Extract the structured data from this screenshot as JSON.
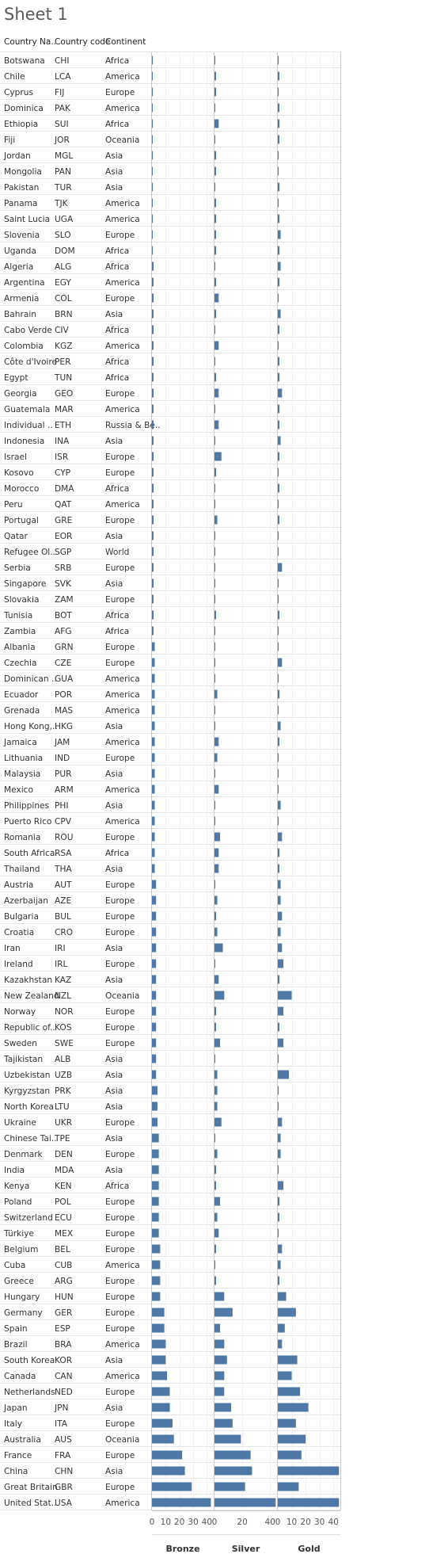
{
  "title": "Sheet 1",
  "columns": [
    "Country Na..",
    "Country code",
    "Continent"
  ],
  "colors": {
    "bar": "#4e79a7",
    "grid": "#e6e6e6",
    "axis": "#c8c8c8"
  },
  "chart_data": {
    "type": "bar",
    "orientation": "horizontal",
    "panels": [
      "Bronze",
      "Silver",
      "Gold"
    ],
    "xlim": [
      0,
      45
    ],
    "xticks": [
      0,
      10,
      20,
      30,
      40
    ],
    "silver_xticks": [
      0,
      20,
      40
    ],
    "rows": [
      {
        "country": "Botswana",
        "code": "CHI",
        "continent": "Africa",
        "bronze": 0,
        "silver": 0,
        "gold": 0
      },
      {
        "country": "Chile",
        "code": "LCA",
        "continent": "America",
        "bronze": 0,
        "silver": 1,
        "gold": 1
      },
      {
        "country": "Cyprus",
        "code": "FIJ",
        "continent": "Europe",
        "bronze": 0,
        "silver": 1,
        "gold": 0
      },
      {
        "country": "Dominica",
        "code": "PAK",
        "continent": "America",
        "bronze": 0,
        "silver": 0,
        "gold": 1
      },
      {
        "country": "Ethiopia",
        "code": "SUI",
        "continent": "Africa",
        "bronze": 0,
        "silver": 3,
        "gold": 1
      },
      {
        "country": "Fiji",
        "code": "JOR",
        "continent": "Oceania",
        "bronze": 0,
        "silver": 0,
        "gold": 1
      },
      {
        "country": "Jordan",
        "code": "MGL",
        "continent": "Asia",
        "bronze": 0,
        "silver": 1,
        "gold": 0
      },
      {
        "country": "Mongolia",
        "code": "PAN",
        "continent": "Asia",
        "bronze": 0,
        "silver": 1,
        "gold": 0
      },
      {
        "country": "Pakistan",
        "code": "TUR",
        "continent": "Asia",
        "bronze": 0,
        "silver": 0,
        "gold": 1
      },
      {
        "country": "Panama",
        "code": "TJK",
        "continent": "America",
        "bronze": 0,
        "silver": 1,
        "gold": 0
      },
      {
        "country": "Saint Lucia",
        "code": "UGA",
        "continent": "America",
        "bronze": 0,
        "silver": 1,
        "gold": 1
      },
      {
        "country": "Slovenia",
        "code": "SLO",
        "continent": "Europe",
        "bronze": 0,
        "silver": 1,
        "gold": 2
      },
      {
        "country": "Uganda",
        "code": "DOM",
        "continent": "Africa",
        "bronze": 0,
        "silver": 1,
        "gold": 1
      },
      {
        "country": "Algeria",
        "code": "ALG",
        "continent": "Africa",
        "bronze": 1,
        "silver": 0,
        "gold": 2
      },
      {
        "country": "Argentina",
        "code": "EGY",
        "continent": "America",
        "bronze": 1,
        "silver": 1,
        "gold": 1
      },
      {
        "country": "Armenia",
        "code": "COL",
        "continent": "Europe",
        "bronze": 1,
        "silver": 3,
        "gold": 0
      },
      {
        "country": "Bahrain",
        "code": "BRN",
        "continent": "Asia",
        "bronze": 1,
        "silver": 1,
        "gold": 2
      },
      {
        "country": "Cabo Verde",
        "code": "CIV",
        "continent": "Africa",
        "bronze": 1,
        "silver": 0,
        "gold": 1
      },
      {
        "country": "Colombia",
        "code": "KGZ",
        "continent": "America",
        "bronze": 1,
        "silver": 3,
        "gold": 0
      },
      {
        "country": "Côte d'Ivoire",
        "code": "PER",
        "continent": "Africa",
        "bronze": 1,
        "silver": 0,
        "gold": 1
      },
      {
        "country": "Egypt",
        "code": "TUN",
        "continent": "Africa",
        "bronze": 1,
        "silver": 1,
        "gold": 1
      },
      {
        "country": "Georgia",
        "code": "GEO",
        "continent": "Europe",
        "bronze": 1,
        "silver": 3,
        "gold": 3
      },
      {
        "country": "Guatemala",
        "code": "MAR",
        "continent": "America",
        "bronze": 1,
        "silver": 0,
        "gold": 1
      },
      {
        "country": "Individual ..",
        "code": "ETH",
        "continent": "Russia & Be..",
        "bronze": 1,
        "silver": 3,
        "gold": 1
      },
      {
        "country": "Indonesia",
        "code": "INA",
        "continent": "Asia",
        "bronze": 1,
        "silver": 0,
        "gold": 2
      },
      {
        "country": "Israel",
        "code": "ISR",
        "continent": "Europe",
        "bronze": 1,
        "silver": 5,
        "gold": 1
      },
      {
        "country": "Kosovo",
        "code": "CYP",
        "continent": "Europe",
        "bronze": 1,
        "silver": 1,
        "gold": 0
      },
      {
        "country": "Morocco",
        "code": "DMA",
        "continent": "Africa",
        "bronze": 1,
        "silver": 0,
        "gold": 1
      },
      {
        "country": "Peru",
        "code": "QAT",
        "continent": "America",
        "bronze": 1,
        "silver": 0,
        "gold": 0
      },
      {
        "country": "Portugal",
        "code": "GRE",
        "continent": "Europe",
        "bronze": 1,
        "silver": 2,
        "gold": 1
      },
      {
        "country": "Qatar",
        "code": "EOR",
        "continent": "Asia",
        "bronze": 1,
        "silver": 0,
        "gold": 0
      },
      {
        "country": "Refugee Ol..",
        "code": "SGP",
        "continent": "World",
        "bronze": 1,
        "silver": 0,
        "gold": 0
      },
      {
        "country": "Serbia",
        "code": "SRB",
        "continent": "Europe",
        "bronze": 1,
        "silver": 0,
        "gold": 3
      },
      {
        "country": "Singapore",
        "code": "SVK",
        "continent": "Asia",
        "bronze": 1,
        "silver": 0,
        "gold": 0
      },
      {
        "country": "Slovakia",
        "code": "ZAM",
        "continent": "Europe",
        "bronze": 1,
        "silver": 0,
        "gold": 0
      },
      {
        "country": "Tunisia",
        "code": "BOT",
        "continent": "Africa",
        "bronze": 1,
        "silver": 1,
        "gold": 1
      },
      {
        "country": "Zambia",
        "code": "AFG",
        "continent": "Africa",
        "bronze": 1,
        "silver": 0,
        "gold": 0
      },
      {
        "country": "Albania",
        "code": "GRN",
        "continent": "Europe",
        "bronze": 2,
        "silver": 0,
        "gold": 0
      },
      {
        "country": "Czechia",
        "code": "CZE",
        "continent": "Europe",
        "bronze": 2,
        "silver": 0,
        "gold": 3
      },
      {
        "country": "Dominican ..",
        "code": "GUA",
        "continent": "America",
        "bronze": 2,
        "silver": 0,
        "gold": 0
      },
      {
        "country": "Ecuador",
        "code": "POR",
        "continent": "America",
        "bronze": 2,
        "silver": 2,
        "gold": 1
      },
      {
        "country": "Grenada",
        "code": "MAS",
        "continent": "America",
        "bronze": 2,
        "silver": 0,
        "gold": 0
      },
      {
        "country": "Hong Kong,..",
        "code": "HKG",
        "continent": "Asia",
        "bronze": 2,
        "silver": 0,
        "gold": 2
      },
      {
        "country": "Jamaica",
        "code": "JAM",
        "continent": "America",
        "bronze": 2,
        "silver": 3,
        "gold": 1
      },
      {
        "country": "Lithuania",
        "code": "IND",
        "continent": "Europe",
        "bronze": 2,
        "silver": 2,
        "gold": 0
      },
      {
        "country": "Malaysia",
        "code": "PUR",
        "continent": "Asia",
        "bronze": 2,
        "silver": 0,
        "gold": 0
      },
      {
        "country": "Mexico",
        "code": "ARM",
        "continent": "America",
        "bronze": 2,
        "silver": 3,
        "gold": 0
      },
      {
        "country": "Philippines",
        "code": "PHI",
        "continent": "Asia",
        "bronze": 2,
        "silver": 0,
        "gold": 2
      },
      {
        "country": "Puerto Rico",
        "code": "CPV",
        "continent": "America",
        "bronze": 2,
        "silver": 0,
        "gold": 0
      },
      {
        "country": "Romania",
        "code": "ROU",
        "continent": "Europe",
        "bronze": 2,
        "silver": 4,
        "gold": 3
      },
      {
        "country": "South Africa",
        "code": "RSA",
        "continent": "Africa",
        "bronze": 2,
        "silver": 3,
        "gold": 1
      },
      {
        "country": "Thailand",
        "code": "THA",
        "continent": "Asia",
        "bronze": 2,
        "silver": 3,
        "gold": 1
      },
      {
        "country": "Austria",
        "code": "AUT",
        "continent": "Europe",
        "bronze": 3,
        "silver": 0,
        "gold": 2
      },
      {
        "country": "Azerbaijan",
        "code": "AZE",
        "continent": "Europe",
        "bronze": 3,
        "silver": 2,
        "gold": 2
      },
      {
        "country": "Bulgaria",
        "code": "BUL",
        "continent": "Europe",
        "bronze": 3,
        "silver": 1,
        "gold": 3
      },
      {
        "country": "Croatia",
        "code": "CRO",
        "continent": "Europe",
        "bronze": 3,
        "silver": 2,
        "gold": 2
      },
      {
        "country": "Iran",
        "code": "IRI",
        "continent": "Asia",
        "bronze": 3,
        "silver": 6,
        "gold": 3
      },
      {
        "country": "Ireland",
        "code": "IRL",
        "continent": "Europe",
        "bronze": 3,
        "silver": 0,
        "gold": 4
      },
      {
        "country": "Kazakhstan",
        "code": "KAZ",
        "continent": "Asia",
        "bronze": 3,
        "silver": 3,
        "gold": 1
      },
      {
        "country": "New Zealand",
        "code": "NZL",
        "continent": "Oceania",
        "bronze": 3,
        "silver": 7,
        "gold": 10
      },
      {
        "country": "Norway",
        "code": "NOR",
        "continent": "Europe",
        "bronze": 3,
        "silver": 1,
        "gold": 4
      },
      {
        "country": "Republic of..",
        "code": "KOS",
        "continent": "Europe",
        "bronze": 3,
        "silver": 1,
        "gold": 1
      },
      {
        "country": "Sweden",
        "code": "SWE",
        "continent": "Europe",
        "bronze": 3,
        "silver": 4,
        "gold": 4
      },
      {
        "country": "Tajikistan",
        "code": "ALB",
        "continent": "Asia",
        "bronze": 3,
        "silver": 0,
        "gold": 0
      },
      {
        "country": "Uzbekistan",
        "code": "UZB",
        "continent": "Asia",
        "bronze": 3,
        "silver": 2,
        "gold": 8
      },
      {
        "country": "Kyrgyzstan",
        "code": "PRK",
        "continent": "Asia",
        "bronze": 4,
        "silver": 2,
        "gold": 0
      },
      {
        "country": "North Korea",
        "code": "LTU",
        "continent": "Asia",
        "bronze": 4,
        "silver": 2,
        "gold": 0
      },
      {
        "country": "Ukraine",
        "code": "UKR",
        "continent": "Europe",
        "bronze": 4,
        "silver": 5,
        "gold": 3
      },
      {
        "country": "Chinese Tai..",
        "code": "TPE",
        "continent": "Asia",
        "bronze": 5,
        "silver": 0,
        "gold": 2
      },
      {
        "country": "Denmark",
        "code": "DEN",
        "continent": "Europe",
        "bronze": 5,
        "silver": 2,
        "gold": 2
      },
      {
        "country": "India",
        "code": "MDA",
        "continent": "Asia",
        "bronze": 5,
        "silver": 1,
        "gold": 0
      },
      {
        "country": "Kenya",
        "code": "KEN",
        "continent": "Africa",
        "bronze": 5,
        "silver": 1,
        "gold": 4
      },
      {
        "country": "Poland",
        "code": "POL",
        "continent": "Europe",
        "bronze": 5,
        "silver": 4,
        "gold": 1
      },
      {
        "country": "Switzerland",
        "code": "ECU",
        "continent": "Europe",
        "bronze": 5,
        "silver": 2,
        "gold": 1
      },
      {
        "country": "Türkiye",
        "code": "MEX",
        "continent": "Europe",
        "bronze": 5,
        "silver": 3,
        "gold": 0
      },
      {
        "country": "Belgium",
        "code": "BEL",
        "continent": "Europe",
        "bronze": 6,
        "silver": 1,
        "gold": 3
      },
      {
        "country": "Cuba",
        "code": "CUB",
        "continent": "America",
        "bronze": 6,
        "silver": 0,
        "gold": 2
      },
      {
        "country": "Greece",
        "code": "ARG",
        "continent": "Europe",
        "bronze": 6,
        "silver": 1,
        "gold": 1
      },
      {
        "country": "Hungary",
        "code": "HUN",
        "continent": "Europe",
        "bronze": 6,
        "silver": 7,
        "gold": 6
      },
      {
        "country": "Germany",
        "code": "GER",
        "continent": "Europe",
        "bronze": 9,
        "silver": 13,
        "gold": 13
      },
      {
        "country": "Spain",
        "code": "ESP",
        "continent": "Europe",
        "bronze": 9,
        "silver": 4,
        "gold": 5
      },
      {
        "country": "Brazil",
        "code": "BRA",
        "continent": "America",
        "bronze": 10,
        "silver": 7,
        "gold": 3
      },
      {
        "country": "South Korea",
        "code": "KOR",
        "continent": "Asia",
        "bronze": 10,
        "silver": 9,
        "gold": 14
      },
      {
        "country": "Canada",
        "code": "CAN",
        "continent": "America",
        "bronze": 11,
        "silver": 7,
        "gold": 10
      },
      {
        "country": "Netherlands",
        "code": "NED",
        "continent": "Europe",
        "bronze": 13,
        "silver": 7,
        "gold": 16
      },
      {
        "country": "Japan",
        "code": "JPN",
        "continent": "Asia",
        "bronze": 13,
        "silver": 12,
        "gold": 22
      },
      {
        "country": "Italy",
        "code": "ITA",
        "continent": "Europe",
        "bronze": 15,
        "silver": 13,
        "gold": 13
      },
      {
        "country": "Australia",
        "code": "AUS",
        "continent": "Oceania",
        "bronze": 16,
        "silver": 19,
        "gold": 20
      },
      {
        "country": "France",
        "code": "FRA",
        "continent": "Europe",
        "bronze": 22,
        "silver": 26,
        "gold": 17
      },
      {
        "country": "China",
        "code": "CHN",
        "continent": "Asia",
        "bronze": 24,
        "silver": 27,
        "gold": 44
      },
      {
        "country": "Great Britain",
        "code": "GBR",
        "continent": "Europe",
        "bronze": 29,
        "silver": 22,
        "gold": 15
      },
      {
        "country": "United Stat..",
        "code": "USA",
        "continent": "America",
        "bronze": 43,
        "silver": 44,
        "gold": 44
      }
    ]
  }
}
